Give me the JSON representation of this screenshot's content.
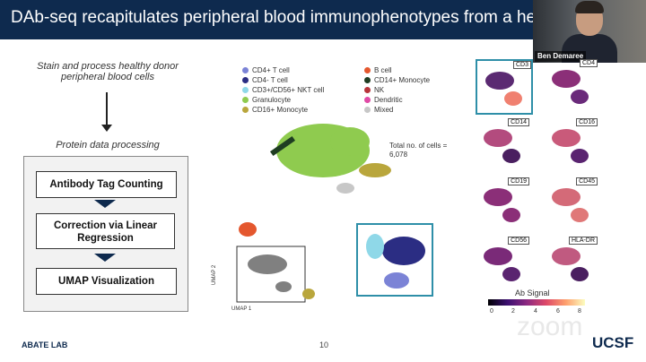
{
  "slide": {
    "title": "DAb-seq recapitulates peripheral blood immunophenotypes from a healthy donor",
    "workflow": {
      "step1": "Stain and process healthy donor peripheral blood cells",
      "step2": "Protein data processing",
      "boxes": [
        "Antibody Tag Counting",
        "Correction via Linear Regression",
        "UMAP Visualization"
      ]
    },
    "legend": [
      {
        "label": "CD4+ T cell",
        "color": "#7b83d6"
      },
      {
        "label": "B cell",
        "color": "#e4572e"
      },
      {
        "label": "CD4- T cell",
        "color": "#2b2d83"
      },
      {
        "label": "CD14+ Monocyte",
        "color": "#1f3d22"
      },
      {
        "label": "CD3+/CD56+ NKT cell",
        "color": "#8fd8e8"
      },
      {
        "label": "NK",
        "color": "#b7343a"
      },
      {
        "label": "Granulocyte",
        "color": "#8fcb4f"
      },
      {
        "label": "Dendritic",
        "color": "#e04aa5"
      },
      {
        "label": "CD16+ Monocyte",
        "color": "#b9a63c"
      },
      {
        "label": "Mixed",
        "color": "#c7c7c7"
      }
    ],
    "total": "Total no. of cells = 6,078",
    "axis_y": "UMAP 2",
    "axis_x": "UMAP 1",
    "markers": [
      "CD3",
      "CD4",
      "CD14",
      "CD16",
      "CD19",
      "CD45",
      "CD56",
      "HLA-DR"
    ],
    "colorbar": {
      "title": "Ab Signal",
      "ticks": [
        "0",
        "2",
        "4",
        "6",
        "8"
      ]
    },
    "footer": {
      "lab": "ABATE LAB",
      "page": "10",
      "watermark": "zoom",
      "logo": "UCSF"
    }
  },
  "video": {
    "name": "Ben Demaree"
  }
}
